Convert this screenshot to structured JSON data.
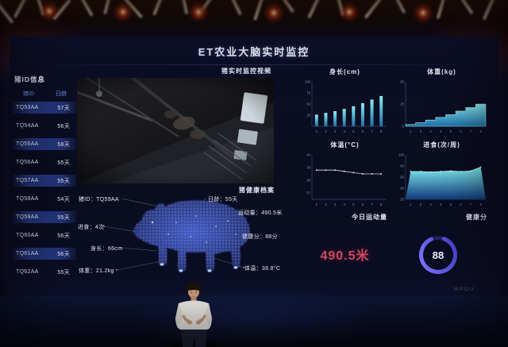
{
  "screen": {
    "title": "ET农业大脑实时监控"
  },
  "sidebar": {
    "title": "猪ID信息",
    "columns": [
      "猪ID",
      "日龄"
    ],
    "rows": [
      {
        "id": "TQ53AA",
        "age": "57天"
      },
      {
        "id": "TQ54AA",
        "age": "56天"
      },
      {
        "id": "TQ55AA",
        "age": "58天"
      },
      {
        "id": "TQ56AA",
        "age": "55天"
      },
      {
        "id": "TQ57AA",
        "age": "55天"
      },
      {
        "id": "TQ58AA",
        "age": "54天"
      },
      {
        "id": "TQ59AA",
        "age": "55天"
      },
      {
        "id": "TQ60AA",
        "age": "56天"
      },
      {
        "id": "TQ61AA",
        "age": "56天"
      },
      {
        "id": "TQ62AA",
        "age": "55天"
      }
    ]
  },
  "video_panel": {
    "title": "猪实时监控视频"
  },
  "health_panel": {
    "title": "猪健康档案",
    "pig_id": "猪ID：TQ59AA",
    "age": "日龄：55天",
    "feeding": "进食：4次",
    "body_length": "身长：66cm",
    "weight": "体重：21.2kg",
    "activity": "运动量：490.5米",
    "health_score": "健康分：88分",
    "temperature": "体温：38.8°C"
  },
  "chart_data": [
    {
      "id": "body_length",
      "type": "bar",
      "title": "身长(cm)",
      "x": [
        1,
        2,
        3,
        4,
        5,
        6,
        7,
        8
      ],
      "values": [
        26,
        30,
        34,
        39,
        45,
        52,
        60,
        68
      ],
      "ylim": [
        0,
        100
      ],
      "yticks": [
        25,
        50,
        75,
        100
      ],
      "grid": false
    },
    {
      "id": "weight",
      "type": "step",
      "title": "体重(kg)",
      "x": [
        1,
        2,
        3,
        4,
        5,
        6,
        7,
        8
      ],
      "values": [
        2,
        4,
        7,
        10,
        13,
        17,
        21,
        25
      ],
      "ylim": [
        0,
        50
      ],
      "yticks": [
        0,
        25,
        50
      ],
      "grid": false
    },
    {
      "id": "temperature",
      "type": "line",
      "title": "体温(°C)",
      "x": [
        1,
        2,
        3,
        4,
        5,
        6,
        7,
        8
      ],
      "values": [
        38.8,
        38.8,
        38.8,
        38.7,
        38.6,
        38.5,
        38.5,
        38.5
      ],
      "ylim": [
        36.5,
        40
      ],
      "yticks": [
        37,
        38,
        39,
        40
      ],
      "grid": false
    },
    {
      "id": "feeding",
      "type": "area",
      "title": "进食(次/周)",
      "x": [
        1,
        2,
        3,
        4,
        5,
        6,
        7,
        8
      ],
      "values": [
        70,
        70,
        69,
        70,
        71,
        70,
        71,
        78
      ],
      "ylim": [
        20,
        100
      ],
      "yticks": [
        20,
        40,
        60,
        80,
        100
      ],
      "grid": false
    },
    {
      "id": "daily_activity",
      "type": "stat",
      "title": "今日运动量",
      "value": "490.5米"
    },
    {
      "id": "health_score",
      "type": "gauge",
      "title": "健康分",
      "value": 88,
      "max": 100
    }
  ],
  "watermark": "WPOU",
  "colors": {
    "accent_cyan": "#6fe3ef",
    "accent_red": "#d2475f",
    "accent_purple": "#5b55f0",
    "row_highlight": "#2a408f",
    "header_blue": "#6e92e6"
  }
}
